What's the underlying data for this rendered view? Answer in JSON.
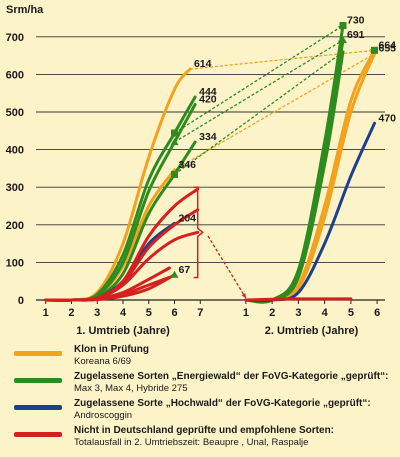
{
  "chart_data": {
    "type": "line",
    "ylabel": "Srm/ha",
    "ylim": [
      0,
      750
    ],
    "yticks": [
      0,
      100,
      200,
      300,
      400,
      500,
      600,
      700
    ],
    "grid": true,
    "panels": [
      {
        "xlabel": "1. Umtrieb (Jahre)",
        "xticks": [
          1,
          2,
          3,
          4,
          5,
          6,
          7
        ],
        "xlim": [
          0.7,
          7.3
        ]
      },
      {
        "xlabel": "2. Umtrieb (Jahre)",
        "xticks": [
          1,
          2,
          3,
          4,
          5,
          6
        ],
        "xlim": [
          0.7,
          6.3
        ]
      }
    ],
    "series": [
      {
        "name": "Klon in Prüfung",
        "group": "orange",
        "color": "#f2a21c",
        "panel": 0,
        "points": [
          [
            1,
            0
          ],
          [
            2,
            0
          ],
          [
            3,
            20
          ],
          [
            4,
            150
          ],
          [
            5,
            380
          ],
          [
            6,
            560
          ],
          [
            6.6,
            614
          ]
        ],
        "label": "614"
      },
      {
        "name": "Klon in Prüfung",
        "group": "orange",
        "color": "#f2a21c",
        "panel": 0,
        "points": [
          [
            1,
            0
          ],
          [
            2,
            0
          ],
          [
            3,
            10
          ],
          [
            4,
            90
          ],
          [
            5,
            250
          ],
          [
            6,
            346
          ]
        ],
        "label": "346"
      },
      {
        "name": "Zugelassene Sorten Energiewald",
        "group": "green",
        "color": "#2e8b1f",
        "panel": 0,
        "points": [
          [
            1,
            0
          ],
          [
            2,
            0
          ],
          [
            3,
            15
          ],
          [
            4,
            120
          ],
          [
            5,
            320
          ],
          [
            6,
            444
          ],
          [
            6.8,
            540
          ]
        ],
        "label": "444"
      },
      {
        "name": "Zugelassene Sorten Energiewald",
        "group": "green",
        "color": "#2e8b1f",
        "panel": 0,
        "points": [
          [
            1,
            0
          ],
          [
            2,
            0
          ],
          [
            3,
            12
          ],
          [
            4,
            100
          ],
          [
            5,
            290
          ],
          [
            6,
            420
          ],
          [
            6.8,
            520
          ]
        ],
        "label": "420"
      },
      {
        "name": "Zugelassene Sorten Energiewald",
        "group": "green",
        "color": "#2e8b1f",
        "panel": 0,
        "points": [
          [
            1,
            0
          ],
          [
            2,
            0
          ],
          [
            3,
            8
          ],
          [
            4,
            70
          ],
          [
            5,
            230
          ],
          [
            6,
            334
          ],
          [
            6.8,
            420
          ]
        ],
        "label": "334"
      },
      {
        "name": "Zugelassene Sorte Hochwald",
        "group": "blue",
        "color": "#1c3f8f",
        "panel": 0,
        "points": [
          [
            1,
            0
          ],
          [
            2,
            0
          ],
          [
            3,
            5
          ],
          [
            4,
            50
          ],
          [
            5,
            150
          ],
          [
            6,
            204
          ]
        ],
        "label": "204"
      },
      {
        "name": "Nicht in Deutschland geprüfte Sorten",
        "group": "red",
        "color": "#d62020",
        "panel": 0,
        "points": [
          [
            1,
            0
          ],
          [
            2,
            0
          ],
          [
            3,
            5
          ],
          [
            4,
            50
          ],
          [
            5,
            170
          ],
          [
            6,
            250
          ],
          [
            6.9,
            295
          ]
        ],
        "label": ""
      },
      {
        "name": "Nicht in Deutschland geprüfte Sorten",
        "group": "red",
        "color": "#d62020",
        "panel": 0,
        "points": [
          [
            1,
            0
          ],
          [
            2,
            0
          ],
          [
            3,
            5
          ],
          [
            4,
            45
          ],
          [
            5,
            140
          ],
          [
            6,
            200
          ],
          [
            6.9,
            240
          ]
        ],
        "label": ""
      },
      {
        "name": "Nicht in Deutschland geprüfte Sorten",
        "group": "red",
        "color": "#d62020",
        "panel": 0,
        "points": [
          [
            1,
            0
          ],
          [
            2,
            0
          ],
          [
            3,
            4
          ],
          [
            4,
            40
          ],
          [
            5,
            110
          ],
          [
            6,
            160
          ],
          [
            6.9,
            180
          ]
        ],
        "label": ""
      },
      {
        "name": "Nicht in Deutschland geprüfte Sorten",
        "group": "red",
        "color": "#d62020",
        "panel": 0,
        "points": [
          [
            1,
            0
          ],
          [
            2,
            0
          ],
          [
            3,
            3
          ],
          [
            4,
            20
          ],
          [
            5,
            55
          ],
          [
            5.8,
            85
          ]
        ],
        "label": ""
      },
      {
        "name": "Nicht in Deutschland geprüfte Sorten",
        "group": "red",
        "color": "#d62020",
        "panel": 0,
        "points": [
          [
            1,
            0
          ],
          [
            2,
            0
          ],
          [
            3,
            2
          ],
          [
            4,
            15
          ],
          [
            5,
            40
          ],
          [
            5.8,
            60
          ]
        ],
        "label": ""
      },
      {
        "name": "Nicht in Deutschland geprüfte Sorten",
        "group": "red",
        "color": "#d62020",
        "panel": 0,
        "points": [
          [
            1,
            0
          ],
          [
            2,
            0
          ],
          [
            3,
            1
          ],
          [
            4,
            10
          ],
          [
            5,
            30
          ],
          [
            6,
            67
          ]
        ],
        "label": "67"
      },
      {
        "name": "Klon in Prüfung",
        "group": "orange",
        "color": "#f2a21c",
        "panel": 1,
        "points": [
          [
            1,
            0
          ],
          [
            2,
            0
          ],
          [
            3,
            40
          ],
          [
            4,
            250
          ],
          [
            5,
            530
          ],
          [
            5.9,
            664
          ]
        ],
        "label": "664"
      },
      {
        "name": "Klon in Prüfung",
        "group": "orange",
        "color": "#f2a21c",
        "panel": 1,
        "points": [
          [
            1,
            0
          ],
          [
            2,
            0
          ],
          [
            3,
            30
          ],
          [
            4,
            220
          ],
          [
            5,
            500
          ],
          [
            5.9,
            655
          ]
        ],
        "label": "655"
      },
      {
        "name": "Zugelassene Sorten Energiewald",
        "group": "green",
        "color": "#2e8b1f",
        "panel": 1,
        "points": [
          [
            1,
            0
          ],
          [
            2,
            0
          ],
          [
            3,
            80
          ],
          [
            4,
            420
          ],
          [
            4.7,
            730
          ]
        ],
        "label": "730"
      },
      {
        "name": "Zugelassene Sorten Energiewald",
        "group": "green",
        "color": "#2e8b1f",
        "panel": 1,
        "points": [
          [
            1,
            0
          ],
          [
            2,
            0
          ],
          [
            3,
            70
          ],
          [
            4,
            390
          ],
          [
            4.7,
            691
          ]
        ],
        "label": "691"
      },
      {
        "name": "Zugelassene Sorten Energiewald",
        "group": "green",
        "color": "#2e8b1f",
        "panel": 1,
        "points": [
          [
            1,
            0
          ],
          [
            2,
            0
          ],
          [
            3,
            60
          ],
          [
            4,
            360
          ],
          [
            4.7,
            660
          ]
        ],
        "label": ""
      },
      {
        "name": "Zugelassene Sorte Hochwald",
        "group": "blue",
        "color": "#1c3f8f",
        "panel": 1,
        "points": [
          [
            1,
            0
          ],
          [
            2,
            0
          ],
          [
            3,
            20
          ],
          [
            4,
            150
          ],
          [
            5,
            330
          ],
          [
            5.9,
            470
          ]
        ],
        "label": "470"
      },
      {
        "name": "Nicht in Deutschland geprüfte Sorten",
        "group": "red",
        "color": "#d62020",
        "panel": 1,
        "points": [
          [
            1,
            0
          ],
          [
            2,
            2
          ],
          [
            3,
            3
          ],
          [
            4,
            3
          ],
          [
            5,
            3
          ]
        ],
        "label": ""
      }
    ],
    "connectors": [
      {
        "from": [
          0,
          6.6,
          614
        ],
        "to": [
          1,
          5.9,
          664
        ],
        "color": "#f2a21c"
      },
      {
        "from": [
          0,
          6.0,
          346
        ],
        "to": [
          1,
          5.9,
          655
        ],
        "color": "#f2a21c"
      },
      {
        "from": [
          0,
          6.0,
          444
        ],
        "to": [
          1,
          4.7,
          730
        ],
        "color": "#2e8b1f"
      },
      {
        "from": [
          0,
          6.0,
          420
        ],
        "to": [
          1,
          4.7,
          691
        ],
        "color": "#2e8b1f"
      },
      {
        "from": [
          0,
          6.0,
          334
        ],
        "to": [
          1,
          4.7,
          660
        ],
        "color": "#2e8b1f"
      },
      {
        "from": [
          0,
          7.3,
          170
        ],
        "to": [
          1,
          1.0,
          5
        ],
        "color": "#d62020"
      }
    ],
    "markers": [
      {
        "panel": 0,
        "x": 6.0,
        "y": 444,
        "color": "#2e8b1f",
        "shape": "square"
      },
      {
        "panel": 0,
        "x": 6.0,
        "y": 420,
        "color": "#2e8b1f",
        "shape": "triangle"
      },
      {
        "panel": 0,
        "x": 6.0,
        "y": 334,
        "color": "#2e8b1f",
        "shape": "square"
      },
      {
        "panel": 0,
        "x": 6.0,
        "y": 67,
        "color": "#2e8b1f",
        "shape": "triangle"
      },
      {
        "panel": 1,
        "x": 4.7,
        "y": 730,
        "color": "#2e8b1f",
        "shape": "square"
      },
      {
        "panel": 1,
        "x": 4.7,
        "y": 691,
        "color": "#2e8b1f",
        "shape": "triangle"
      },
      {
        "panel": 1,
        "x": 5.9,
        "y": 664,
        "color": "#2e8b1f",
        "shape": "square"
      }
    ],
    "bracket": {
      "panel": 0,
      "x": 6.9,
      "y_top": 300,
      "y_bottom": 60,
      "color": "#d62020"
    }
  },
  "legend": [
    {
      "title": "Klon in Prüfung",
      "subtitle": "Koreana 6/69",
      "color": "#f2a21c"
    },
    {
      "title": "Zugelassene Sorten „Energiewald“ der FoVG-Kategorie „geprüft“:",
      "subtitle": "Max 3, Max 4, Hybride 275",
      "color": "#2e8b1f"
    },
    {
      "title": "Zugelassene Sorte „Hochwald“ der FoVG-Kategorie „geprüft“:",
      "subtitle": "Androscoggin",
      "color": "#1c3f8f"
    },
    {
      "title": "Nicht in Deutschland geprüfte und empfohlene Sorten:",
      "subtitle": "Totalausfall in  2. Umtriebszeit: Beaupre , Unal,  Raspalje",
      "color": "#d62020"
    }
  ]
}
